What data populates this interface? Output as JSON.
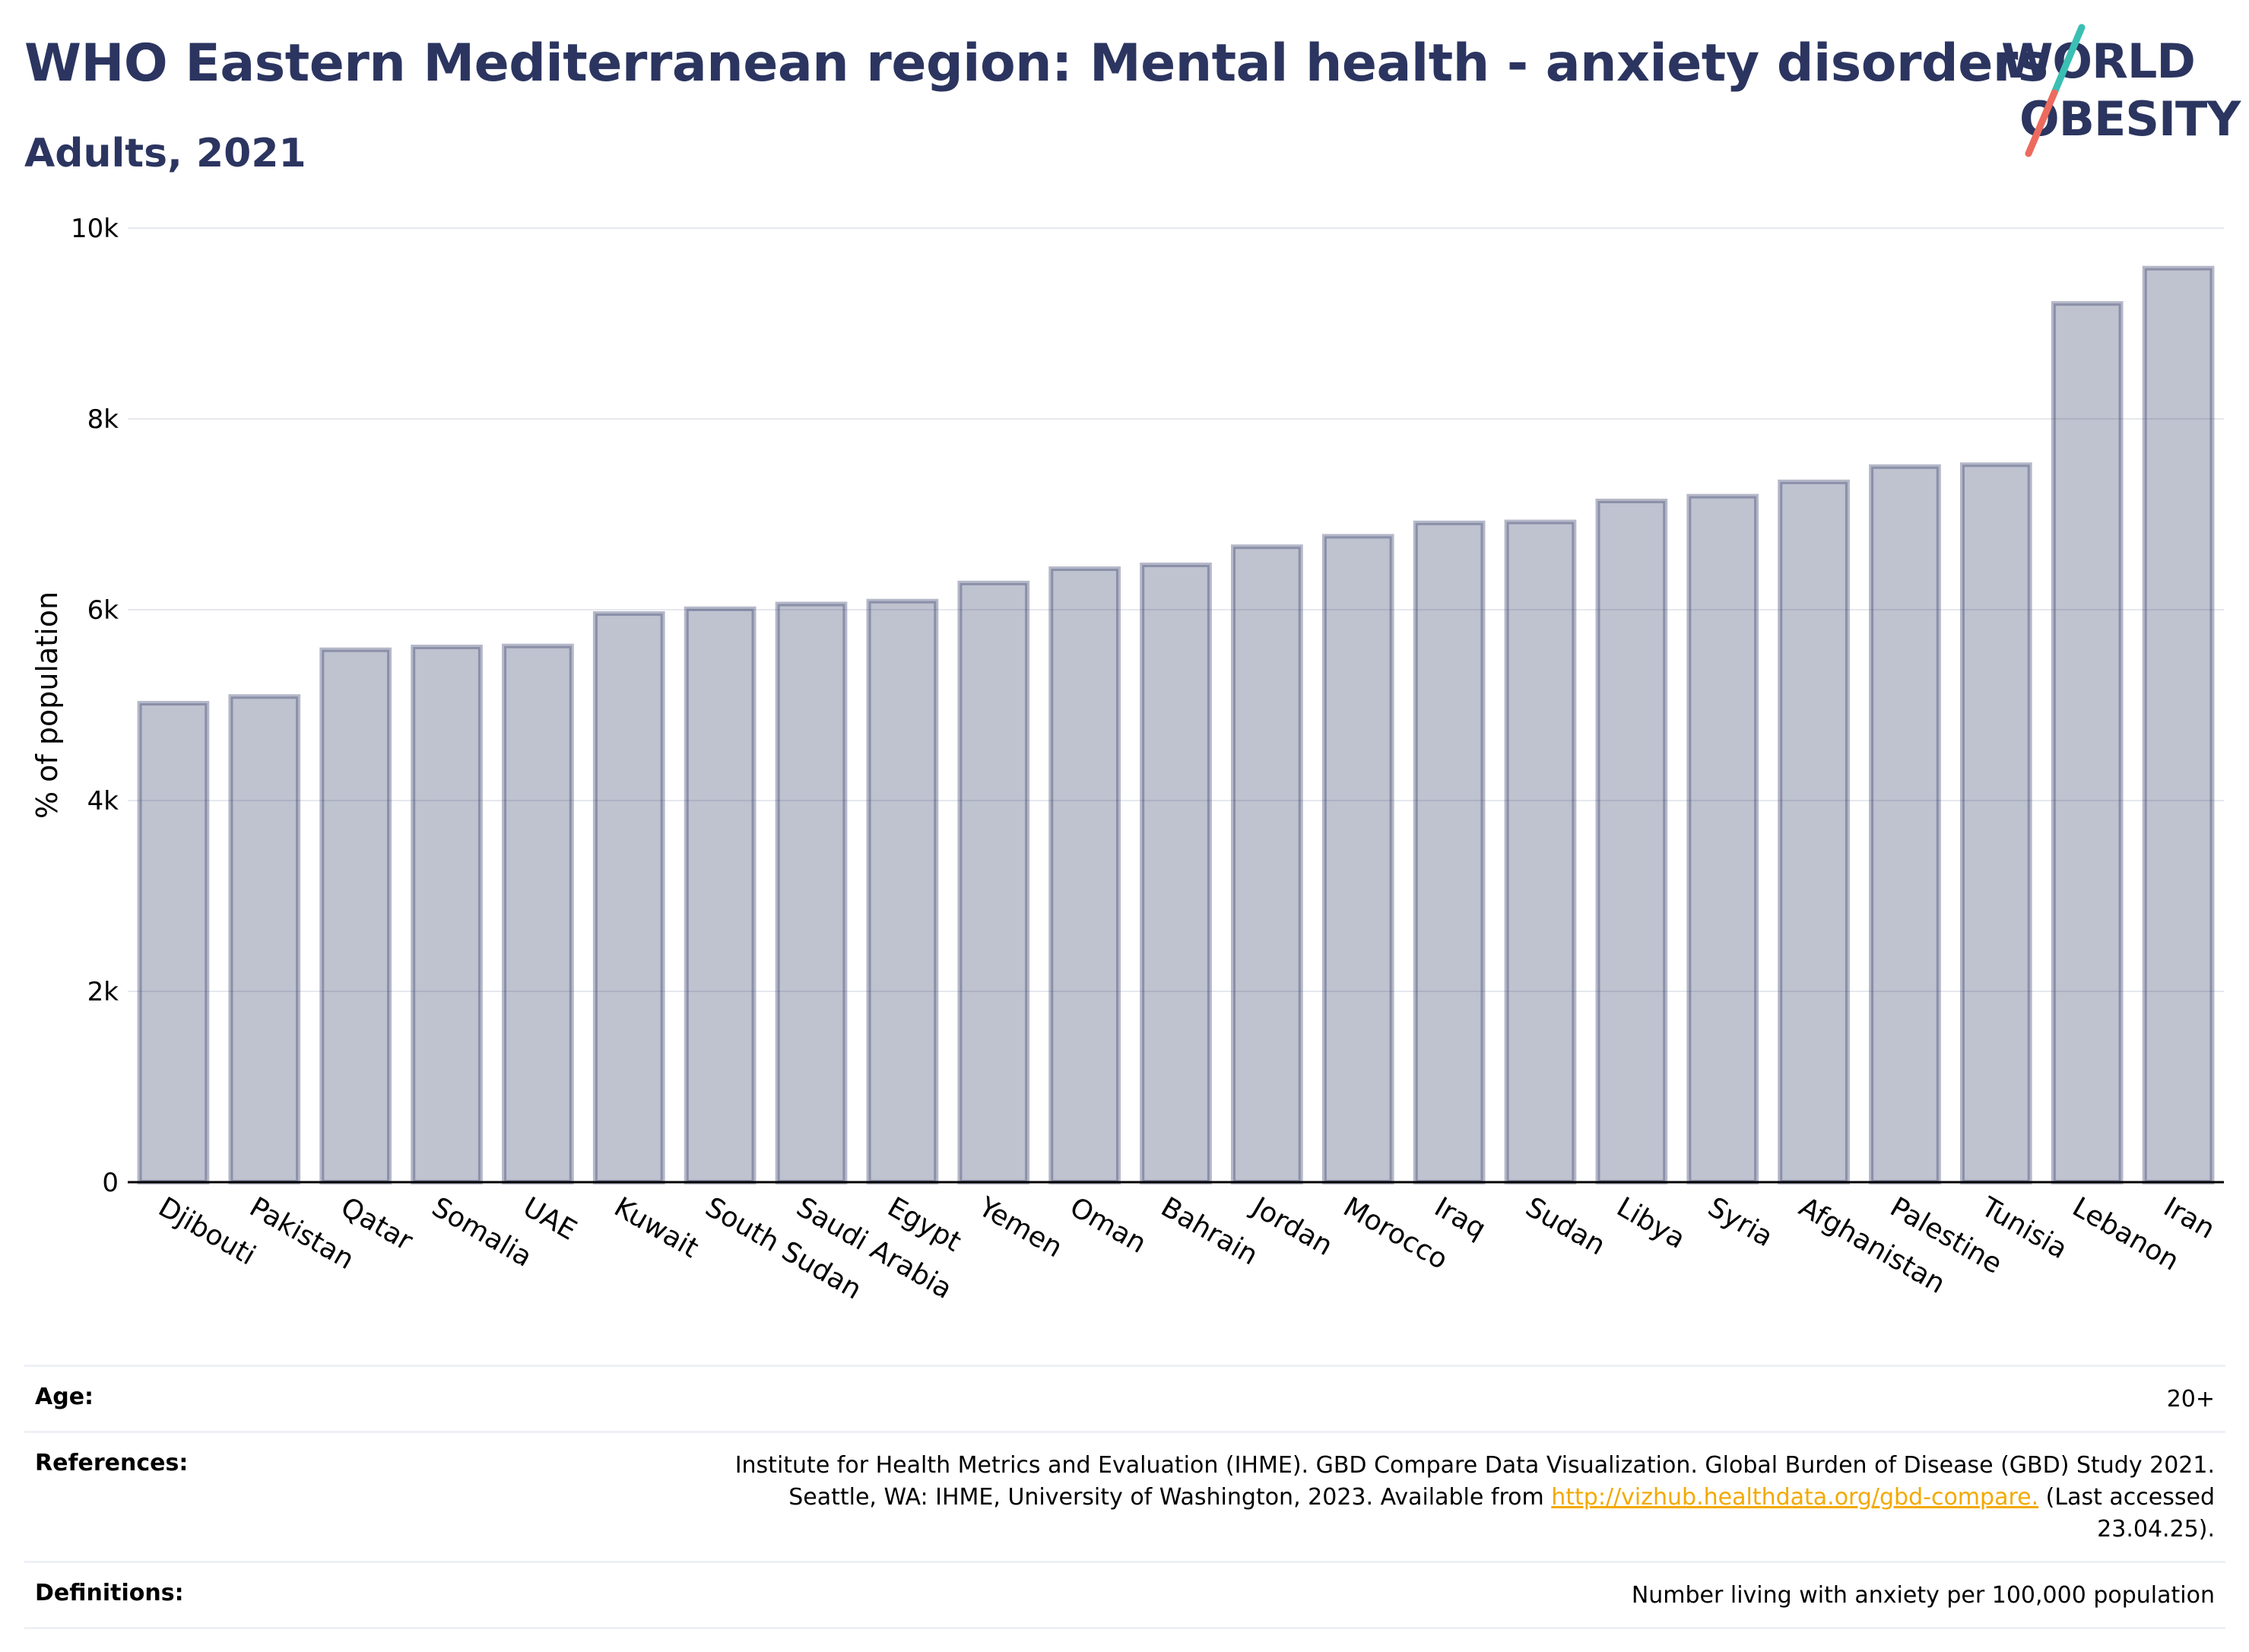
{
  "title": "WHO Eastern Mediterranean region: Mental health - anxiety disorders",
  "subtitle": "Adults, 2021",
  "logo": {
    "line1": "WORLD",
    "line2": "OBESITY"
  },
  "chart_data": {
    "type": "bar",
    "ylabel": "% of population",
    "ylim": [
      0,
      10000
    ],
    "yticks": [
      0,
      2000,
      4000,
      6000,
      8000,
      10000
    ],
    "ytick_labels": [
      "0",
      "2k",
      "4k",
      "6k",
      "8k",
      "10k"
    ],
    "grid": true,
    "bar_color": "#2b3560",
    "categories": [
      "Djibouti",
      "Pakistan",
      "Qatar",
      "Somalia",
      "UAE",
      "Kuwait",
      "South Sudan",
      "Saudi Arabia",
      "Egypt",
      "Yemen",
      "Oman",
      "Bahrain",
      "Jordan",
      "Morocco",
      "Iraq",
      "Sudan",
      "Libya",
      "Syria",
      "Afghanistan",
      "Palestine",
      "Tunisia",
      "Lebanon",
      "Iran"
    ],
    "values": [
      5020,
      5090,
      5580,
      5610,
      5620,
      5960,
      6010,
      6060,
      6090,
      6280,
      6430,
      6470,
      6660,
      6770,
      6910,
      6920,
      7140,
      7190,
      7340,
      7500,
      7520,
      9210,
      9580
    ]
  },
  "info": {
    "age_label": "Age:",
    "age_value": "20+",
    "references_label": "References:",
    "references_text_1": "Institute for Health Metrics and Evaluation (IHME). GBD Compare Data Visualization. Global Burden of Disease (GBD) Study 2021.",
    "references_text_2": "Seattle, WA: IHME, University of Washington, 2023. Available from",
    "references_link": "http://vizhub.healthdata.org/gbd-compare.",
    "references_text_3": "(Last accessed",
    "references_text_4": "23.04.25).",
    "definitions_label": "Definitions:",
    "definitions_value": "Number living with anxiety per 100,000 population"
  }
}
